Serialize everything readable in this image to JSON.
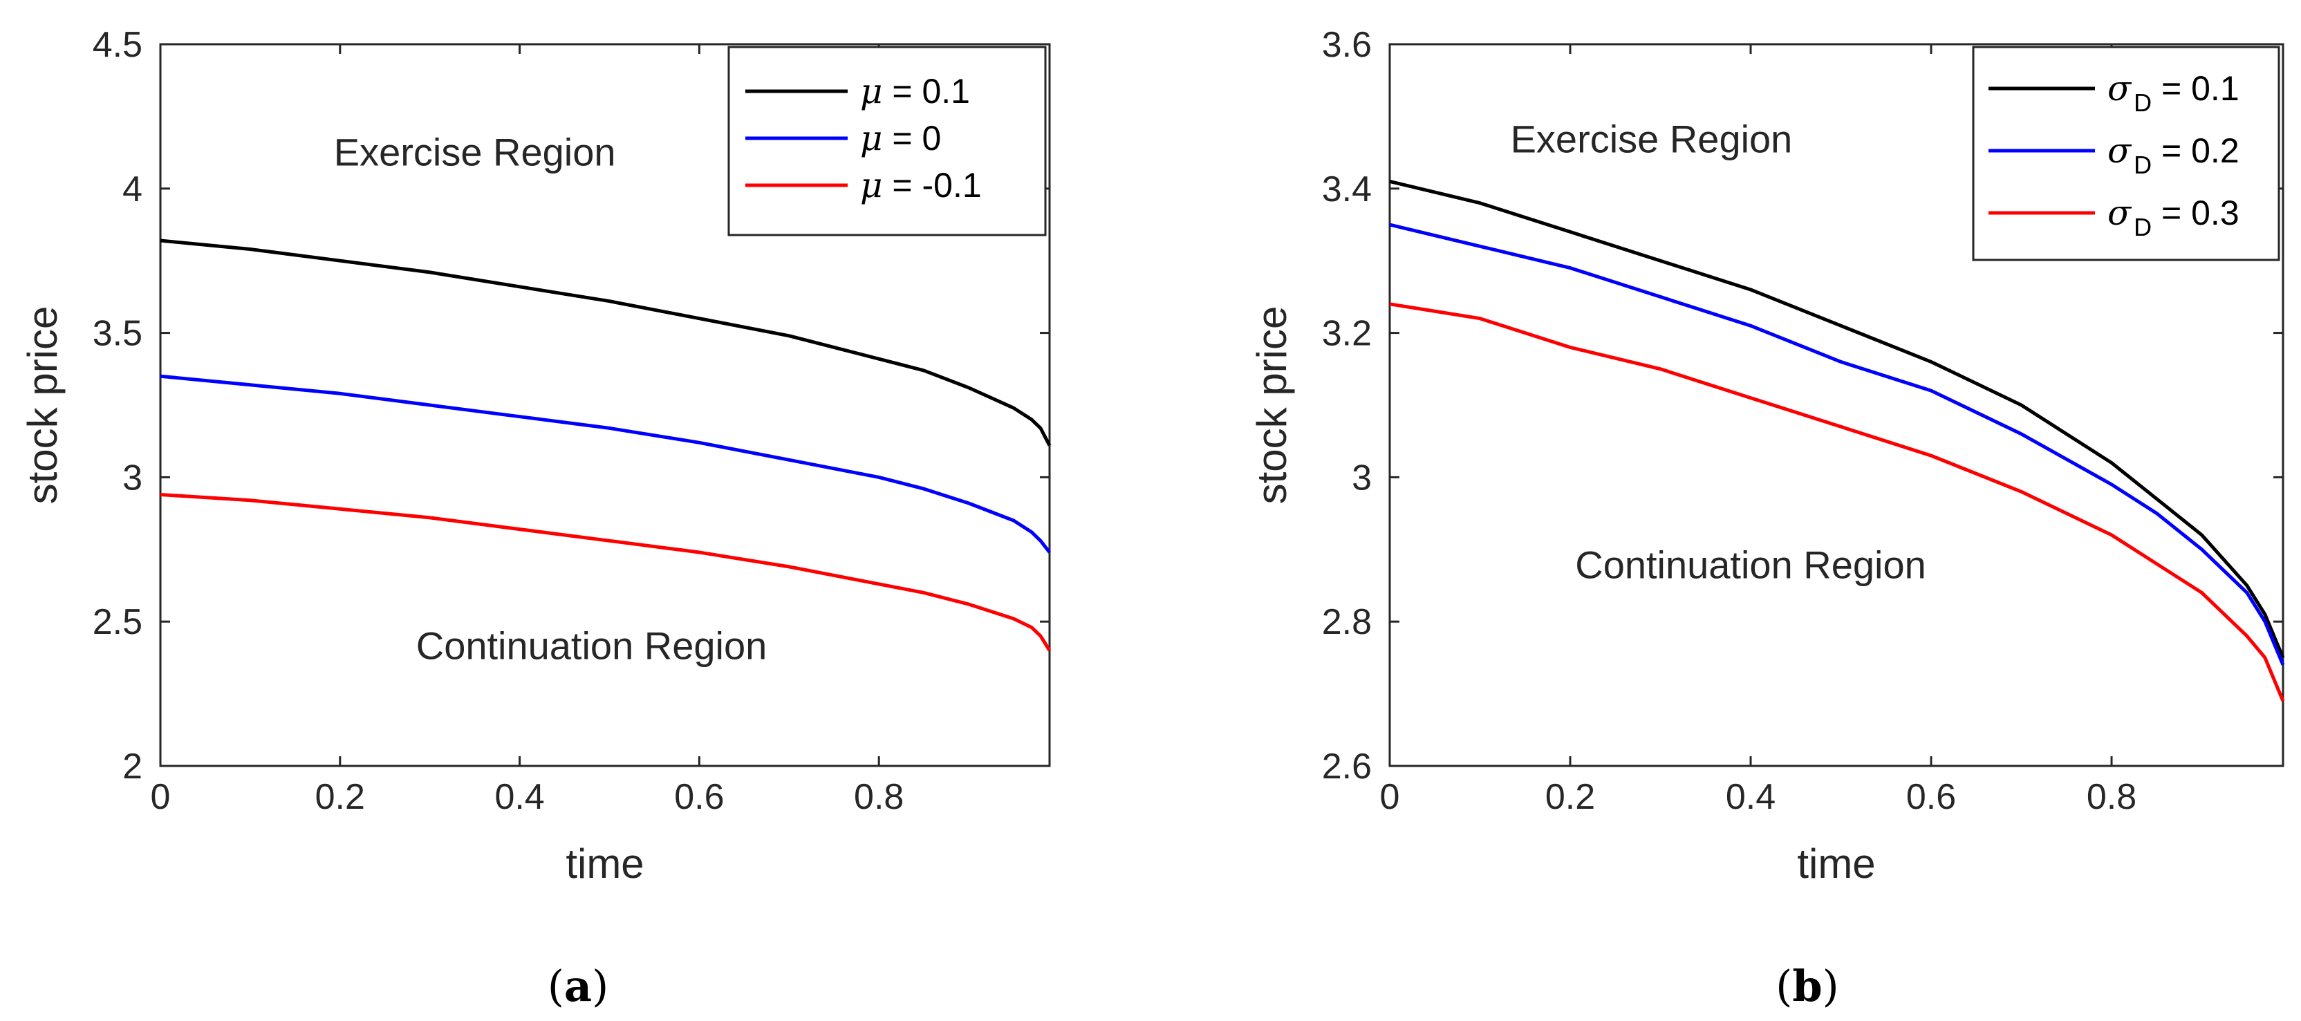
{
  "chart_data": [
    {
      "type": "line",
      "panel": "a",
      "caption": {
        "open": "(",
        "letter": "a",
        "close": ")"
      },
      "xlabel": "time",
      "ylabel": "stock price",
      "xlim": [
        0,
        0.99
      ],
      "ylim": [
        2,
        4.5
      ],
      "xticks": [
        0,
        0.2,
        0.4,
        0.6,
        0.8
      ],
      "xtick_labels": [
        "0",
        "0.2",
        "0.4",
        "0.6",
        "0.8"
      ],
      "yticks": [
        2,
        2.5,
        3,
        3.5,
        4,
        4.5
      ],
      "ytick_labels": [
        "2",
        "2.5",
        "3",
        "3.5",
        "4",
        "4.5"
      ],
      "legend_position": "top-right",
      "annotations": [
        {
          "text": "Exercise Region",
          "x": 0.35,
          "y": 4.08
        },
        {
          "text": "Continuation Region",
          "x": 0.48,
          "y": 2.37
        }
      ],
      "series": [
        {
          "symbol": "μ",
          "subscript": "",
          "label": "= 0.1",
          "color": "#000000",
          "x": [
            0,
            0.1,
            0.2,
            0.3,
            0.4,
            0.5,
            0.6,
            0.7,
            0.8,
            0.85,
            0.9,
            0.95,
            0.97,
            0.98,
            0.99
          ],
          "y": [
            3.82,
            3.79,
            3.75,
            3.71,
            3.66,
            3.61,
            3.55,
            3.49,
            3.41,
            3.37,
            3.31,
            3.24,
            3.2,
            3.17,
            3.11
          ]
        },
        {
          "symbol": "μ",
          "subscript": "",
          "label": "= 0",
          "color": "#0000ff",
          "x": [
            0,
            0.1,
            0.2,
            0.3,
            0.4,
            0.5,
            0.6,
            0.7,
            0.8,
            0.85,
            0.9,
            0.95,
            0.97,
            0.98,
            0.99
          ],
          "y": [
            3.35,
            3.32,
            3.29,
            3.25,
            3.21,
            3.17,
            3.12,
            3.06,
            3.0,
            2.96,
            2.91,
            2.85,
            2.81,
            2.78,
            2.74
          ]
        },
        {
          "symbol": "μ",
          "subscript": "",
          "label": "= -0.1",
          "color": "#ff0000",
          "x": [
            0,
            0.1,
            0.2,
            0.3,
            0.4,
            0.5,
            0.6,
            0.7,
            0.8,
            0.85,
            0.9,
            0.95,
            0.97,
            0.98,
            0.99
          ],
          "y": [
            2.94,
            2.92,
            2.89,
            2.86,
            2.82,
            2.78,
            2.74,
            2.69,
            2.63,
            2.6,
            2.56,
            2.51,
            2.48,
            2.45,
            2.4
          ]
        }
      ]
    },
    {
      "type": "line",
      "panel": "b",
      "caption": {
        "open": "(",
        "letter": "b",
        "close": ")"
      },
      "xlabel": "time",
      "ylabel": "stock price",
      "xlim": [
        0,
        0.99
      ],
      "ylim": [
        2.6,
        3.6
      ],
      "xticks": [
        0,
        0.2,
        0.4,
        0.6,
        0.8
      ],
      "xtick_labels": [
        "0",
        "0.2",
        "0.4",
        "0.6",
        "0.8"
      ],
      "yticks": [
        2.6,
        2.8,
        3,
        3.2,
        3.4,
        3.6
      ],
      "ytick_labels": [
        "2.6",
        "2.8",
        "3",
        "3.2",
        "3.4",
        "3.6"
      ],
      "legend_position": "top-right",
      "annotations": [
        {
          "text": "Exercise Region",
          "x": 0.29,
          "y": 3.45
        },
        {
          "text": "Continuation Region",
          "x": 0.4,
          "y": 2.86
        }
      ],
      "series": [
        {
          "symbol": "σ",
          "subscript": "D",
          "label": "= 0.1",
          "color": "#000000",
          "x": [
            0,
            0.1,
            0.2,
            0.3,
            0.4,
            0.5,
            0.6,
            0.7,
            0.8,
            0.85,
            0.9,
            0.95,
            0.97,
            0.98,
            0.99
          ],
          "y": [
            3.41,
            3.38,
            3.34,
            3.3,
            3.26,
            3.21,
            3.16,
            3.1,
            3.02,
            2.97,
            2.92,
            2.85,
            2.81,
            2.78,
            2.75
          ]
        },
        {
          "symbol": "σ",
          "subscript": "D",
          "label": "= 0.2",
          "color": "#0000ff",
          "x": [
            0,
            0.1,
            0.2,
            0.3,
            0.4,
            0.5,
            0.6,
            0.7,
            0.8,
            0.85,
            0.9,
            0.95,
            0.97,
            0.98,
            0.99
          ],
          "y": [
            3.35,
            3.32,
            3.29,
            3.25,
            3.21,
            3.16,
            3.12,
            3.06,
            2.99,
            2.95,
            2.9,
            2.84,
            2.8,
            2.77,
            2.74
          ]
        },
        {
          "symbol": "σ",
          "subscript": "D",
          "label": "= 0.3",
          "color": "#ff0000",
          "x": [
            0,
            0.1,
            0.2,
            0.3,
            0.4,
            0.5,
            0.6,
            0.7,
            0.8,
            0.85,
            0.9,
            0.95,
            0.97,
            0.98,
            0.99
          ],
          "y": [
            3.24,
            3.22,
            3.18,
            3.15,
            3.11,
            3.07,
            3.03,
            2.98,
            2.92,
            2.88,
            2.84,
            2.78,
            2.75,
            2.72,
            2.69
          ]
        }
      ]
    }
  ]
}
